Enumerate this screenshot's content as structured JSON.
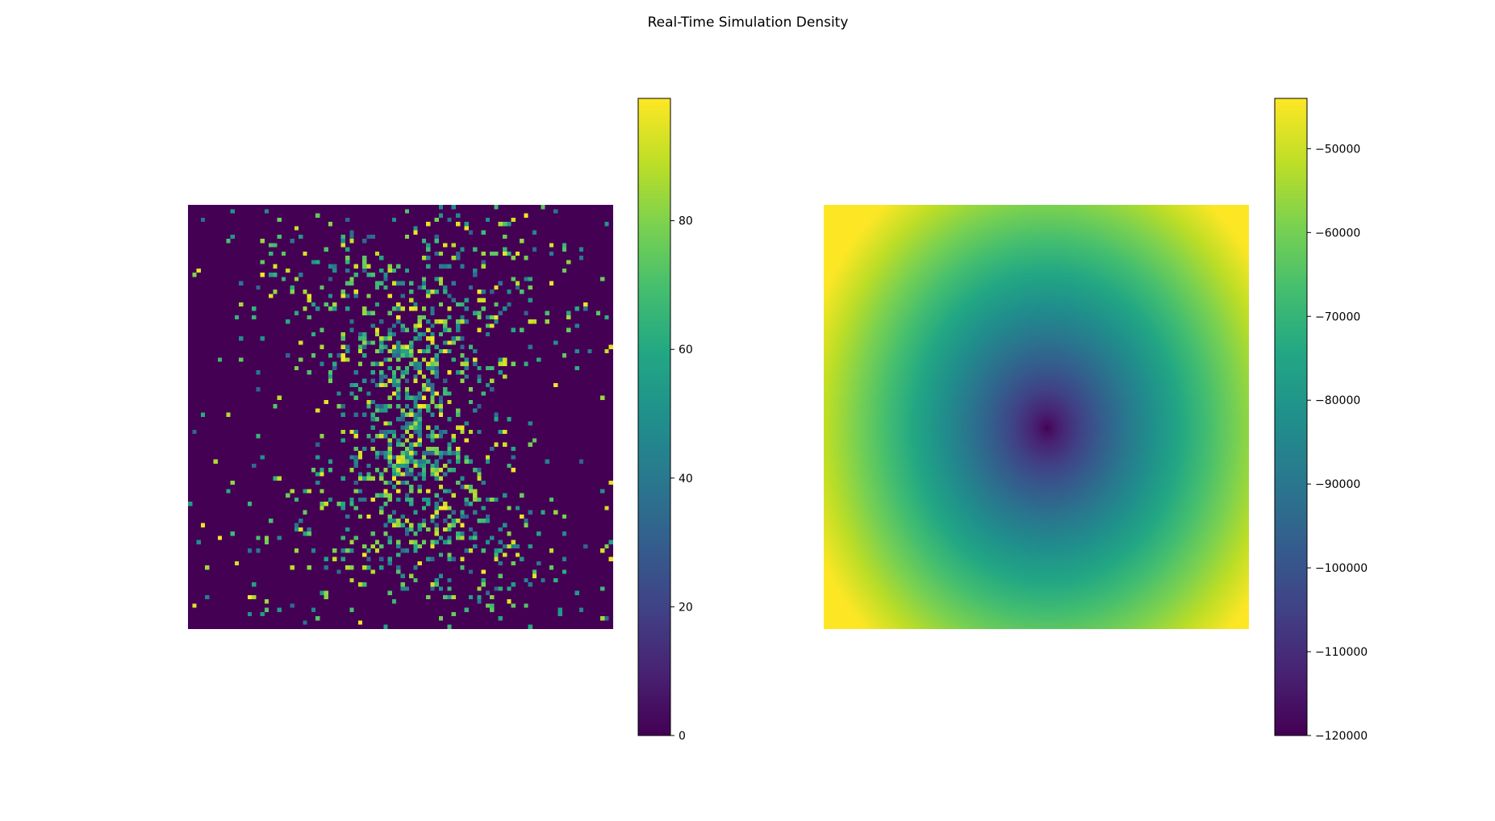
{
  "figure": {
    "title": "Real-Time Simulation Density"
  },
  "chart_data": [
    {
      "type": "heatmap",
      "title": "",
      "xlabel": "",
      "ylabel": "",
      "axes_visible": false,
      "grid": false,
      "colormap": "viridis",
      "grid_size": [
        100,
        100
      ],
      "value_range": [
        0,
        99
      ],
      "description_of_values": "sparse scattered cells; most cells 0; non-zero cells concentrated near center in an hourglass/butterfly pattern",
      "colorbar": {
        "ticks": [
          0,
          20,
          40,
          60,
          80
        ],
        "tick_labels": [
          "0",
          "20",
          "40",
          "60",
          "80"
        ],
        "range": [
          0,
          99
        ]
      }
    },
    {
      "type": "heatmap",
      "title": "",
      "xlabel": "",
      "ylabel": "",
      "axes_visible": false,
      "grid": false,
      "colormap": "viridis",
      "grid_size": [
        100,
        100
      ],
      "value_range": [
        -120000,
        -44000
      ],
      "description_of_values": "smooth potential field with a minimum (~-120000) slightly right of center, rising toward corners (~-44000)",
      "colorbar": {
        "ticks": [
          -120000,
          -110000,
          -100000,
          -90000,
          -80000,
          -70000,
          -60000,
          -50000
        ],
        "tick_labels": [
          "−120000",
          "−110000",
          "−100000",
          "−90000",
          "−80000",
          "−70000",
          "−60000",
          "−50000"
        ],
        "range": [
          -120000,
          -44000
        ]
      }
    }
  ]
}
